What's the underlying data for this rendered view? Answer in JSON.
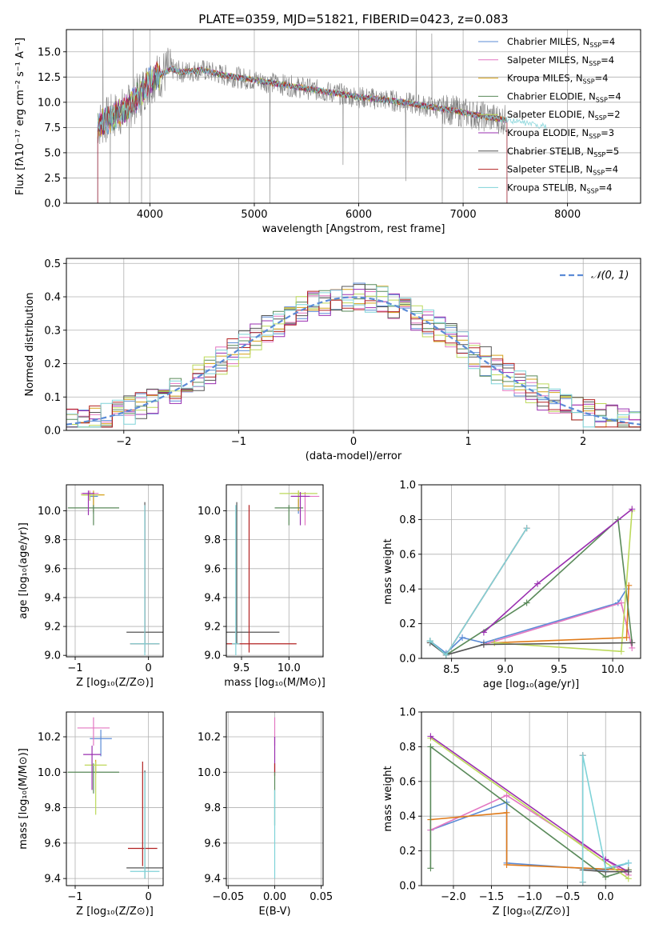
{
  "colors": {
    "Chabrier MILES": "#5b8bd6",
    "Salpeter MILES": "#e377c2",
    "Kroupa MILES": "#d4a017",
    "Chabrier ELODIE": "#5a8a5a",
    "Salpeter ELODIE": "#bcd95a",
    "Kroupa ELODIE": "#9a2fb0",
    "Chabrier STELIB": "#555555",
    "Salpeter STELIB": "#b22222",
    "Kroupa STELIB": "#7fd3d8",
    "norm": "#5b8bd6",
    "orange": "#e07b1a"
  },
  "chart_data": [
    {
      "id": "spectrum",
      "type": "line",
      "title": "PLATE=0359, MJD=51821, FIBERID=0423, z=0.083",
      "xlabel": "wavelength [Angstrom, rest frame]",
      "ylabel": "Flux [fλ10⁻¹⁷ erg cm⁻² s⁻¹ A⁻¹]",
      "xlim": [
        3200,
        8700
      ],
      "ylim": [
        0,
        17.2
      ],
      "xticks": [
        4000,
        5000,
        6000,
        7000,
        8000
      ],
      "xtick_labels": [
        "4000",
        "5000",
        "6000",
        "7000",
        "8000"
      ],
      "yticks": [
        0,
        2.5,
        5,
        7.5,
        10,
        12.5,
        15
      ],
      "ytick_labels": [
        "0.0",
        "2.5",
        "5.0",
        "7.5",
        "10.0",
        "12.5",
        "15.0"
      ],
      "legend_position": "top-right",
      "legend": [
        {
          "main": "Chabrier MILES, N",
          "sub": "SSP",
          "tail": "=4",
          "key": "Chabrier MILES"
        },
        {
          "main": "Salpeter MILES, N",
          "sub": "SSP",
          "tail": "=4",
          "key": "Salpeter MILES"
        },
        {
          "main": "Kroupa MILES, N",
          "sub": "SSP",
          "tail": "=4",
          "key": "Kroupa MILES"
        },
        {
          "main": "Chabrier ELODIE, N",
          "sub": "SSP",
          "tail": "=4",
          "key": "Chabrier ELODIE"
        },
        {
          "main": "Salpeter ELODIE, N",
          "sub": "SSP",
          "tail": "=2",
          "key": "Salpeter ELODIE"
        },
        {
          "main": "Kroupa ELODIE, N",
          "sub": "SSP",
          "tail": "=3",
          "key": "Kroupa ELODIE"
        },
        {
          "main": "Chabrier STELIB, N",
          "sub": "SSP",
          "tail": "=5",
          "key": "Chabrier STELIB"
        },
        {
          "main": "Salpeter STELIB, N",
          "sub": "SSP",
          "tail": "=4",
          "key": "Salpeter STELIB"
        },
        {
          "main": "Kroupa STELIB, N",
          "sub": "SSP",
          "tail": "=4",
          "key": "Kroupa STELIB"
        }
      ],
      "model_continuum": {
        "x": [
          3500,
          3600,
          3700,
          3800,
          3900,
          4000,
          4100,
          4200,
          4300,
          4500,
          4700,
          5000,
          5300,
          5600,
          6000,
          6300,
          6600,
          6900,
          7200,
          7500,
          7800
        ],
        "y": [
          7.8,
          8.3,
          8.9,
          9.5,
          10.8,
          12.2,
          12.7,
          13.3,
          13.0,
          13.2,
          12.7,
          12.2,
          11.7,
          11.2,
          10.5,
          10.2,
          9.7,
          9.2,
          8.6,
          8.1,
          7.6
        ]
      },
      "data_spectrum": {
        "x_range": [
          3500,
          7420
        ],
        "noise_amplitude": 1.1,
        "spikes": [
          {
            "x": 3550,
            "y": 17.2
          },
          {
            "x": 3620,
            "y": 0
          },
          {
            "x": 3800,
            "y": 0
          },
          {
            "x": 3840,
            "y": 17.2
          },
          {
            "x": 3920,
            "y": 0
          },
          {
            "x": 4000,
            "y": 5.0
          },
          {
            "x": 5150,
            "y": 0
          },
          {
            "x": 5850,
            "y": 3.8
          },
          {
            "x": 6550,
            "y": 17.2
          },
          {
            "x": 6700,
            "y": 16.8
          },
          {
            "x": 6800,
            "y": 0
          },
          {
            "x": 6450,
            "y": 2.2
          }
        ]
      }
    },
    {
      "id": "residuals",
      "type": "step",
      "xlabel": "(data-model)/error",
      "ylabel": "Normed distribution",
      "xlim": [
        -2.5,
        2.5
      ],
      "ylim": [
        0,
        0.515
      ],
      "xticks": [
        -2,
        -1,
        0,
        1,
        2
      ],
      "xtick_labels": [
        "−2",
        "−1",
        "0",
        "1",
        "2"
      ],
      "yticks": [
        0,
        0.1,
        0.2,
        0.3,
        0.4,
        0.5
      ],
      "ytick_labels": [
        "0.0",
        "0.1",
        "0.2",
        "0.3",
        "0.4",
        "0.5"
      ],
      "bin_width": 0.1,
      "legend_position": "top-right",
      "legend_label": "𝒩(0, 1)",
      "series": [
        {
          "name": "Chabrier MILES",
          "jitter_seed": 1
        },
        {
          "name": "Salpeter MILES",
          "jitter_seed": 2
        },
        {
          "name": "Kroupa MILES",
          "jitter_seed": 3
        },
        {
          "name": "Chabrier ELODIE",
          "jitter_seed": 4
        },
        {
          "name": "Salpeter ELODIE",
          "jitter_seed": 5
        },
        {
          "name": "Kroupa ELODIE",
          "jitter_seed": 6
        },
        {
          "name": "Chabrier STELIB",
          "jitter_seed": 7
        },
        {
          "name": "Salpeter STELIB",
          "jitter_seed": 8
        },
        {
          "name": "Kroupa STELIB",
          "jitter_seed": 9
        }
      ]
    },
    {
      "id": "age-vs-Z",
      "type": "errorbar",
      "xlabel": "Z [log₁₀(Z/Z⊙)]",
      "ylabel": "age  [log₁₀(age/yr)]",
      "xlim": [
        -1.12,
        0.2
      ],
      "ylim": [
        8.99,
        10.18
      ],
      "xticks": [
        -1,
        0
      ],
      "xtick_labels": [
        "−1",
        "0"
      ],
      "yticks": [
        9.0,
        9.2,
        9.4,
        9.6,
        9.8,
        10.0
      ],
      "ytick_labels": [
        "9.0",
        "9.2",
        "9.4",
        "9.6",
        "9.8",
        "10.0"
      ],
      "points": [
        {
          "key": "Chabrier MILES",
          "x": -0.75,
          "y": 10.1,
          "xerr": 0.06,
          "yerr": [
            0.12,
            0.03
          ]
        },
        {
          "key": "Salpeter MILES",
          "x": -0.8,
          "y": 10.12,
          "xerr": 0.12,
          "yerr": [
            0.05,
            0.02
          ]
        },
        {
          "key": "Kroupa MILES",
          "x": -0.75,
          "y": 10.11,
          "xerr": 0.15,
          "yerr": [
            0.12,
            0.03
          ]
        },
        {
          "key": "Chabrier ELODIE",
          "x": -0.75,
          "y": 10.02,
          "xerr": 0.35,
          "yerr": [
            0.12,
            0.02
          ]
        },
        {
          "key": "Salpeter ELODIE",
          "x": -0.8,
          "y": 10.11,
          "xerr": 0.12,
          "yerr": [
            0.04,
            0.02
          ]
        },
        {
          "key": "Kroupa ELODIE",
          "x": -0.82,
          "y": 10.12,
          "xerr": 0.08,
          "yerr": [
            0.15,
            0.02
          ]
        },
        {
          "key": "Chabrier STELIB",
          "x": -0.05,
          "y": 9.16,
          "xerr": 0.25,
          "yerr": [
            0.08,
            0.9
          ]
        },
        {
          "key": "Salpeter STELIB",
          "x": -0.05,
          "y": 9.08,
          "xerr": 0.2,
          "yerr": [
            0.06,
            0.96
          ]
        },
        {
          "key": "Kroupa STELIB",
          "x": -0.05,
          "y": 9.08,
          "xerr": 0.2,
          "yerr": [
            0.08,
            0.96
          ]
        }
      ]
    },
    {
      "id": "age-vs-mass",
      "type": "errorbar",
      "xlabel": "mass [log₁₀(M/M⊙)]",
      "ylabel": "",
      "xlim": [
        9.34,
        10.36
      ],
      "ylim": [
        8.99,
        10.18
      ],
      "xticks": [
        9.5,
        10.0
      ],
      "xtick_labels": [
        "9.5",
        "10.0"
      ],
      "yticks": [
        9.0,
        9.2,
        9.4,
        9.6,
        9.8,
        10.0
      ],
      "ytick_labels": [
        "9.0",
        "9.2",
        "9.4",
        "9.6",
        "9.8",
        "10.0"
      ],
      "points": [
        {
          "key": "Chabrier MILES",
          "x": 10.1,
          "y": 10.1,
          "xerr": 0.08,
          "yerr": [
            0.12,
            0.03
          ]
        },
        {
          "key": "Salpeter MILES",
          "x": 10.17,
          "y": 10.1,
          "xerr": 0.15,
          "yerr": [
            0.2,
            0.03
          ]
        },
        {
          "key": "Kroupa MILES",
          "x": 10.1,
          "y": 10.12,
          "xerr": 0.08,
          "yerr": [
            0.12,
            0.02
          ]
        },
        {
          "key": "Chabrier ELODIE",
          "x": 10.0,
          "y": 10.02,
          "xerr": 0.15,
          "yerr": [
            0.12,
            0.02
          ]
        },
        {
          "key": "Salpeter ELODIE",
          "x": 10.1,
          "y": 10.12,
          "xerr": 0.2,
          "yerr": [
            0.04,
            0.02
          ]
        },
        {
          "key": "Kroupa ELODIE",
          "x": 10.12,
          "y": 10.1,
          "xerr": 0.1,
          "yerr": [
            0.2,
            0.03
          ]
        },
        {
          "key": "Chabrier STELIB",
          "x": 9.45,
          "y": 9.16,
          "xerr": 0.45,
          "yerr": [
            0.08,
            0.9
          ]
        },
        {
          "key": "Salpeter STELIB",
          "x": 9.58,
          "y": 9.08,
          "xerr": 0.5,
          "yerr": [
            0.06,
            0.96
          ]
        },
        {
          "key": "Kroupa STELIB",
          "x": 9.44,
          "y": 9.08,
          "xerr": 0.04,
          "yerr": [
            0.08,
            0.96
          ]
        }
      ]
    },
    {
      "id": "weight-vs-age",
      "type": "line",
      "xlabel": "age  [log₁₀(age/yr)]",
      "ylabel": "mass weight",
      "xlim": [
        8.22,
        10.26
      ],
      "ylim": [
        0,
        1.0
      ],
      "xticks": [
        8.5,
        9.0,
        9.5,
        10.0
      ],
      "xtick_labels": [
        "8.5",
        "9.0",
        "9.5",
        "10.0"
      ],
      "yticks": [
        0,
        0.2,
        0.4,
        0.6,
        0.8,
        1.0
      ],
      "ytick_labels": [
        "0.0",
        "0.2",
        "0.4",
        "0.6",
        "0.8",
        "1.0"
      ],
      "series": [
        {
          "key": "Chabrier MILES",
          "x": [
            8.3,
            8.45,
            8.6,
            8.8,
            10.05,
            10.13
          ],
          "y": [
            0.1,
            0.03,
            0.12,
            0.09,
            0.32,
            0.4
          ]
        },
        {
          "key": "Salpeter MILES",
          "x": [
            8.8,
            10.08,
            10.18
          ],
          "y": [
            0.08,
            0.32,
            0.06
          ]
        },
        {
          "key": "orange",
          "x": [
            8.9,
            10.13,
            10.15
          ],
          "y": [
            0.09,
            0.12,
            0.42
          ]
        },
        {
          "key": "Chabrier ELODIE",
          "x": [
            8.3,
            8.45,
            9.2,
            10.05,
            10.18
          ],
          "y": [
            0.1,
            0.02,
            0.32,
            0.8,
            0.09
          ]
        },
        {
          "key": "Salpeter ELODIE",
          "x": [
            8.9,
            10.08,
            10.18
          ],
          "y": [
            0.09,
            0.04,
            0.85
          ]
        },
        {
          "key": "Kroupa ELODIE",
          "x": [
            8.8,
            9.3,
            10.18
          ],
          "y": [
            0.15,
            0.43,
            0.86
          ]
        },
        {
          "key": "Chabrier STELIB",
          "x": [
            8.3,
            8.45,
            8.8,
            10.18
          ],
          "y": [
            0.09,
            0.02,
            0.08,
            0.09
          ]
        },
        {
          "key": "Salpeter STELIB",
          "x": [
            8.45,
            9.2
          ],
          "y": [
            0.02,
            0.75
          ]
        },
        {
          "key": "Kroupa STELIB",
          "x": [
            8.3,
            8.45,
            9.2
          ],
          "y": [
            0.1,
            0.02,
            0.75
          ]
        }
      ]
    },
    {
      "id": "mass-vs-Z",
      "type": "errorbar",
      "xlabel": "Z [log₁₀(Z/Z⊙)]",
      "ylabel": "mass [log₁₀(M/M⊙)]",
      "xlim": [
        -1.12,
        0.2
      ],
      "ylim": [
        9.36,
        10.34
      ],
      "xticks": [
        -1,
        0
      ],
      "xtick_labels": [
        "−1",
        "0"
      ],
      "yticks": [
        9.4,
        9.6,
        9.8,
        10.0,
        10.2
      ],
      "ytick_labels": [
        "9.4",
        "9.6",
        "9.8",
        "10.0",
        "10.2"
      ],
      "points": [
        {
          "key": "Chabrier MILES",
          "x": -0.65,
          "y": 10.19,
          "xerr": 0.15,
          "yerr": [
            0.1,
            0.05
          ]
        },
        {
          "key": "Salpeter MILES",
          "x": -0.75,
          "y": 10.25,
          "xerr": 0.22,
          "yerr": [
            0.1,
            0.06
          ]
        },
        {
          "key": "Kroupa MILES",
          "x": -0.72,
          "y": 10.04,
          "xerr": 0.15,
          "yerr": [
            0.05,
            0.03
          ]
        },
        {
          "key": "Chabrier ELODIE",
          "x": -0.75,
          "y": 10.0,
          "xerr": 0.35,
          "yerr": [
            0.12,
            0.05
          ]
        },
        {
          "key": "Salpeter ELODIE",
          "x": -0.72,
          "y": 10.04,
          "xerr": 0.15,
          "yerr": [
            0.28,
            0.02
          ]
        },
        {
          "key": "Kroupa ELODIE",
          "x": -0.77,
          "y": 10.1,
          "xerr": 0.12,
          "yerr": [
            0.2,
            0.05
          ]
        },
        {
          "key": "Chabrier STELIB",
          "x": -0.05,
          "y": 9.46,
          "xerr": 0.25,
          "yerr": [
            0.06,
            0.55
          ]
        },
        {
          "key": "Salpeter STELIB",
          "x": -0.08,
          "y": 9.57,
          "xerr": 0.2,
          "yerr": [
            0.1,
            0.49
          ]
        },
        {
          "key": "Kroupa STELIB",
          "x": -0.05,
          "y": 9.44,
          "xerr": 0.2,
          "yerr": [
            0.04,
            0.56
          ]
        }
      ]
    },
    {
      "id": "mass-vs-EBV",
      "type": "errorbar",
      "xlabel": "E(B-V)",
      "ylabel": "",
      "xlim": [
        -0.052,
        0.052
      ],
      "ylim": [
        9.36,
        10.34
      ],
      "xticks": [
        -0.05,
        0,
        0.05
      ],
      "xtick_labels": [
        "−0.05",
        "0.00",
        "0.05"
      ],
      "yticks": [
        9.4,
        9.6,
        9.8,
        10.0,
        10.2
      ],
      "ytick_labels": [
        "9.4",
        "9.6",
        "9.8",
        "10.0",
        "10.2"
      ],
      "points": [
        {
          "key": "Salpeter MILES",
          "x": 0,
          "y": 10.25,
          "xerr": 0,
          "yerr": [
            0.1,
            0.06
          ]
        },
        {
          "key": "Kroupa ELODIE",
          "x": 0,
          "y": 10.15,
          "xerr": 0,
          "yerr": [
            0.15,
            0.05
          ]
        },
        {
          "key": "Salpeter STELIB",
          "x": 0,
          "y": 10.0,
          "xerr": 0,
          "yerr": [
            0.02,
            0.05
          ]
        },
        {
          "key": "Chabrier ELODIE",
          "x": 0,
          "y": 9.9,
          "xerr": 0,
          "yerr": [
            0.2,
            0.1
          ]
        },
        {
          "key": "Kroupa STELIB",
          "x": 0,
          "y": 9.6,
          "xerr": 0,
          "yerr": [
            0.2,
            0.3
          ]
        }
      ]
    },
    {
      "id": "weight-vs-Z",
      "type": "line",
      "xlabel": "Z [log₁₀(Z/Z⊙)]",
      "ylabel": "mass weight",
      "xlim": [
        -2.42,
        0.46
      ],
      "ylim": [
        0,
        1.0
      ],
      "xticks": [
        -2.0,
        -1.5,
        -1.0,
        -0.5,
        0.0
      ],
      "xtick_labels": [
        "−2.0",
        "−1.5",
        "−1.0",
        "−0.5",
        "0.0"
      ],
      "yticks": [
        0,
        0.2,
        0.4,
        0.6,
        0.8,
        1.0
      ],
      "ytick_labels": [
        "0.0",
        "0.2",
        "0.4",
        "0.6",
        "0.8",
        "1.0"
      ],
      "series": [
        {
          "key": "Chabrier MILES",
          "x": [
            -2.3,
            -1.3,
            -1.3,
            0.0,
            0.3
          ],
          "y": [
            0.32,
            0.48,
            0.13,
            0.09,
            0.13
          ]
        },
        {
          "key": "Salpeter MILES",
          "x": [
            -2.3,
            -1.3,
            0.0,
            0.3
          ],
          "y": [
            0.32,
            0.52,
            0.15,
            0.06
          ]
        },
        {
          "key": "orange",
          "x": [
            -2.3,
            -1.3,
            -1.3,
            0.3
          ],
          "y": [
            0.38,
            0.42,
            0.12,
            0.09
          ]
        },
        {
          "key": "Chabrier ELODIE",
          "x": [
            -2.3,
            -2.3,
            0.0,
            0.3
          ],
          "y": [
            0.1,
            0.8,
            0.05,
            0.09
          ]
        },
        {
          "key": "Salpeter ELODIE",
          "x": [
            -2.3,
            0.3
          ],
          "y": [
            0.85,
            0.04
          ]
        },
        {
          "key": "Kroupa ELODIE",
          "x": [
            -2.3,
            0.0,
            0.3
          ],
          "y": [
            0.86,
            0.15,
            0.08
          ]
        },
        {
          "key": "Chabrier STELIB",
          "x": [
            -0.3,
            0.0,
            0.3
          ],
          "y": [
            0.09,
            0.08,
            0.08
          ]
        },
        {
          "key": "Salpeter STELIB",
          "x": [
            -0.3,
            -0.3
          ],
          "y": [
            0.02,
            0.75
          ]
        },
        {
          "key": "Kroupa STELIB",
          "x": [
            -0.3,
            -0.3,
            0.0,
            0.3
          ],
          "y": [
            0.02,
            0.75,
            0.1,
            0.13
          ]
        }
      ]
    }
  ]
}
